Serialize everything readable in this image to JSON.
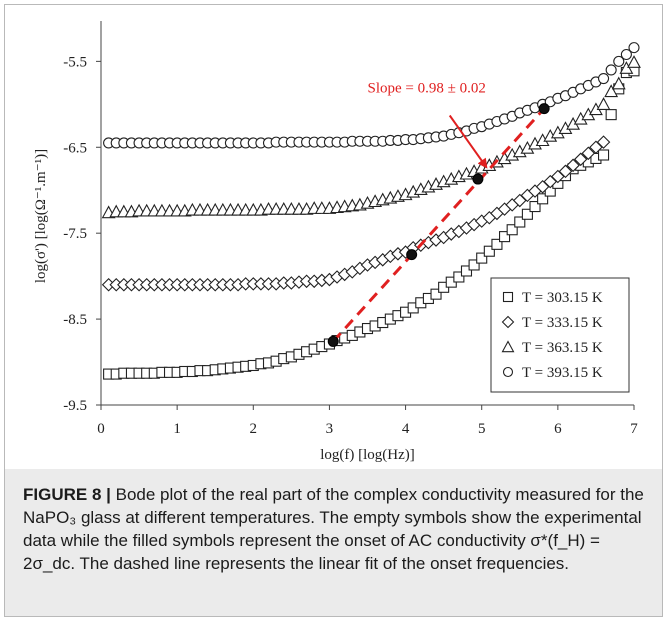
{
  "chart_data": {
    "type": "scatter",
    "xlabel": "log(f)  [log(Hz)]",
    "ylabel": "log(σ')  [log(Ω⁻¹.m⁻¹)]",
    "xlim": [
      0,
      7
    ],
    "ylim": [
      -9.5,
      -5.1
    ],
    "xticks": [
      "0",
      "1",
      "2",
      "3",
      "4",
      "5",
      "6",
      "7"
    ],
    "yticks": [
      "-5.5",
      "-6.5",
      "-7.5",
      "-8.5",
      "-9.5"
    ],
    "grid": false,
    "legend_position": "bottom-right",
    "series": [
      {
        "name": "T = 303.15 K",
        "symbol": "square",
        "x": [
          0.1,
          0.2,
          0.3,
          0.4,
          0.5,
          0.6,
          0.7,
          0.8,
          0.9,
          1.0,
          1.1,
          1.2,
          1.3,
          1.4,
          1.5,
          1.6,
          1.7,
          1.8,
          1.9,
          2.0,
          2.1,
          2.2,
          2.3,
          2.4,
          2.5,
          2.6,
          2.7,
          2.8,
          2.9,
          3.0,
          3.1,
          3.2,
          3.3,
          3.4,
          3.5,
          3.6,
          3.7,
          3.8,
          3.9,
          4.0,
          4.1,
          4.2,
          4.3,
          4.4,
          4.5,
          4.6,
          4.7,
          4.8,
          4.9,
          5.0,
          5.1,
          5.2,
          5.3,
          5.4,
          5.5,
          5.6,
          5.7,
          5.8,
          5.9,
          6.0,
          6.1,
          6.2,
          6.3,
          6.4,
          6.5,
          6.6,
          6.7,
          6.8,
          6.9,
          7.0
        ],
        "y": [
          -9.14,
          -9.14,
          -9.13,
          -9.13,
          -9.13,
          -9.13,
          -9.13,
          -9.12,
          -9.12,
          -9.12,
          -9.11,
          -9.11,
          -9.1,
          -9.1,
          -9.09,
          -9.08,
          -9.07,
          -9.06,
          -9.05,
          -9.04,
          -9.02,
          -9.01,
          -8.99,
          -8.96,
          -8.94,
          -8.91,
          -8.88,
          -8.85,
          -8.82,
          -8.79,
          -8.75,
          -8.72,
          -8.69,
          -8.65,
          -8.61,
          -8.58,
          -8.54,
          -8.5,
          -8.46,
          -8.42,
          -8.37,
          -8.31,
          -8.26,
          -8.21,
          -8.13,
          -8.07,
          -8.01,
          -7.94,
          -7.87,
          -7.79,
          -7.71,
          -7.63,
          -7.54,
          -7.46,
          -7.37,
          -7.28,
          -7.19,
          -7.1,
          -7.01,
          -6.92,
          -6.83,
          -6.75,
          -6.71,
          -6.67,
          -6.63,
          -6.59,
          -6.12,
          -5.82,
          -5.63,
          -5.61
        ]
      },
      {
        "name": "T = 333.15 K",
        "symbol": "diamond",
        "x": [
          0.1,
          0.2,
          0.3,
          0.4,
          0.5,
          0.6,
          0.7,
          0.8,
          0.9,
          1.0,
          1.1,
          1.2,
          1.3,
          1.4,
          1.5,
          1.6,
          1.7,
          1.8,
          1.9,
          2.0,
          2.1,
          2.2,
          2.3,
          2.4,
          2.5,
          2.6,
          2.7,
          2.8,
          2.9,
          3.0,
          3.1,
          3.2,
          3.3,
          3.4,
          3.5,
          3.6,
          3.7,
          3.8,
          3.9,
          4.0,
          4.1,
          4.2,
          4.3,
          4.4,
          4.5,
          4.6,
          4.7,
          4.8,
          4.9,
          5.0,
          5.1,
          5.2,
          5.3,
          5.4,
          5.5,
          5.6,
          5.7,
          5.8,
          5.9,
          6.0,
          6.1,
          6.2,
          6.3,
          6.4,
          6.5,
          6.6
        ],
        "y": [
          -8.1,
          -8.1,
          -8.1,
          -8.1,
          -8.1,
          -8.1,
          -8.1,
          -8.1,
          -8.1,
          -8.1,
          -8.1,
          -8.1,
          -8.1,
          -8.1,
          -8.1,
          -8.1,
          -8.1,
          -8.1,
          -8.09,
          -8.09,
          -8.09,
          -8.09,
          -8.09,
          -8.08,
          -8.08,
          -8.07,
          -8.06,
          -8.06,
          -8.05,
          -8.04,
          -8.01,
          -7.98,
          -7.95,
          -7.91,
          -7.87,
          -7.84,
          -7.81,
          -7.77,
          -7.74,
          -7.72,
          -7.67,
          -7.64,
          -7.61,
          -7.58,
          -7.55,
          -7.51,
          -7.48,
          -7.44,
          -7.4,
          -7.36,
          -7.32,
          -7.27,
          -7.22,
          -7.17,
          -7.12,
          -7.06,
          -7.01,
          -6.96,
          -6.9,
          -6.84,
          -6.78,
          -6.71,
          -6.64,
          -6.57,
          -6.5,
          -6.44
        ]
      },
      {
        "name": "T = 363.15 K",
        "symbol": "triangle",
        "x": [
          0.1,
          0.2,
          0.3,
          0.4,
          0.5,
          0.6,
          0.7,
          0.8,
          0.9,
          1.0,
          1.1,
          1.2,
          1.3,
          1.4,
          1.5,
          1.6,
          1.7,
          1.8,
          1.9,
          2.0,
          2.1,
          2.2,
          2.3,
          2.4,
          2.5,
          2.6,
          2.7,
          2.8,
          2.9,
          3.0,
          3.1,
          3.2,
          3.3,
          3.4,
          3.5,
          3.6,
          3.7,
          3.8,
          3.9,
          4.0,
          4.1,
          4.2,
          4.3,
          4.4,
          4.5,
          4.6,
          4.7,
          4.8,
          4.9,
          5.0,
          5.1,
          5.2,
          5.3,
          5.4,
          5.5,
          5.6,
          5.7,
          5.8,
          5.9,
          6.0,
          6.1,
          6.2,
          6.3,
          6.4,
          6.5,
          6.6,
          6.7,
          6.8,
          6.9,
          7.0
        ],
        "y": [
          -7.26,
          -7.25,
          -7.25,
          -7.25,
          -7.24,
          -7.24,
          -7.24,
          -7.24,
          -7.24,
          -7.24,
          -7.24,
          -7.23,
          -7.23,
          -7.23,
          -7.23,
          -7.23,
          -7.23,
          -7.23,
          -7.23,
          -7.23,
          -7.23,
          -7.22,
          -7.22,
          -7.22,
          -7.22,
          -7.22,
          -7.22,
          -7.21,
          -7.21,
          -7.21,
          -7.2,
          -7.19,
          -7.18,
          -7.17,
          -7.15,
          -7.13,
          -7.11,
          -7.09,
          -7.07,
          -7.05,
          -7.02,
          -6.99,
          -6.96,
          -6.93,
          -6.9,
          -6.87,
          -6.84,
          -6.81,
          -6.78,
          -6.74,
          -6.71,
          -6.67,
          -6.63,
          -6.59,
          -6.55,
          -6.51,
          -6.46,
          -6.42,
          -6.37,
          -6.33,
          -6.28,
          -6.23,
          -6.17,
          -6.12,
          -6.06,
          -6.0,
          -5.85,
          -5.76,
          -5.58,
          -5.51
        ]
      },
      {
        "name": "T = 393.15 K",
        "symbol": "circle",
        "x": [
          0.1,
          0.2,
          0.3,
          0.4,
          0.5,
          0.6,
          0.7,
          0.8,
          0.9,
          1.0,
          1.1,
          1.2,
          1.3,
          1.4,
          1.5,
          1.6,
          1.7,
          1.8,
          1.9,
          2.0,
          2.1,
          2.2,
          2.3,
          2.4,
          2.5,
          2.6,
          2.7,
          2.8,
          2.9,
          3.0,
          3.1,
          3.2,
          3.3,
          3.4,
          3.5,
          3.6,
          3.7,
          3.8,
          3.9,
          4.0,
          4.1,
          4.2,
          4.3,
          4.4,
          4.5,
          4.6,
          4.7,
          4.8,
          4.9,
          5.0,
          5.1,
          5.2,
          5.3,
          5.4,
          5.5,
          5.6,
          5.7,
          5.8,
          5.9,
          6.0,
          6.1,
          6.2,
          6.3,
          6.4,
          6.5,
          6.6,
          6.7,
          6.8,
          6.9,
          7.0
        ],
        "y": [
          -6.45,
          -6.45,
          -6.45,
          -6.45,
          -6.45,
          -6.45,
          -6.45,
          -6.45,
          -6.45,
          -6.45,
          -6.45,
          -6.45,
          -6.45,
          -6.45,
          -6.45,
          -6.45,
          -6.45,
          -6.45,
          -6.45,
          -6.45,
          -6.45,
          -6.45,
          -6.44,
          -6.44,
          -6.44,
          -6.44,
          -6.44,
          -6.44,
          -6.44,
          -6.44,
          -6.44,
          -6.44,
          -6.43,
          -6.43,
          -6.43,
          -6.43,
          -6.43,
          -6.42,
          -6.42,
          -6.41,
          -6.41,
          -6.4,
          -6.39,
          -6.38,
          -6.37,
          -6.35,
          -6.33,
          -6.31,
          -6.28,
          -6.26,
          -6.23,
          -6.2,
          -6.17,
          -6.14,
          -6.1,
          -6.07,
          -6.04,
          -6.0,
          -5.97,
          -5.93,
          -5.9,
          -5.86,
          -5.82,
          -5.78,
          -5.74,
          -5.7,
          -5.6,
          -5.5,
          -5.42,
          -5.34
        ]
      }
    ],
    "onset_points": {
      "x": [
        3.05,
        4.08,
        4.95,
        5.82
      ],
      "y": [
        -8.76,
        -7.75,
        -6.87,
        -6.05
      ]
    },
    "fit_line": {
      "x": [
        3.05,
        5.82
      ],
      "y": [
        -8.76,
        -6.05
      ],
      "style": "dashed",
      "color": "#e02020"
    },
    "annotation": {
      "text": "Slope = 0.98 ± 0.02",
      "color": "#e02020"
    },
    "colors": {
      "markers": "#222222",
      "onset_fill": "#111111",
      "fit": "#e02020"
    }
  },
  "caption": {
    "label": "FIGURE 8 |",
    "text": "Bode plot of the real part of the complex conductivity measured for the NaPO₃ glass at different temperatures. The empty symbols show the experimental data while the filled symbols represent the onset of AC conductivity σ*(f_H) = 2σ_dc. The dashed line represents the linear fit of the onset frequencies."
  }
}
